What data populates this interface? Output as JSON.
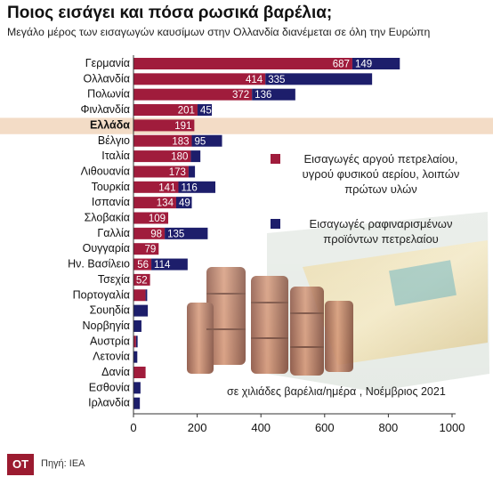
{
  "title": "Ποιος εισάγει και πόσα ρωσικά βαρέλια;",
  "subtitle": "Μεγάλο μέρος των εισαγωγών καυσίμων στην Ολλανδία διανέμεται σε όλη την Ευρώπη",
  "unit_note": "σε χιλιάδες βαρέλια/ημέρα , Νοέμβριος 2021",
  "footer": {
    "logo": "OT",
    "source": "Πηγή: IEA"
  },
  "colors": {
    "crude": "#a01c3c",
    "refined": "#1d1e6b",
    "highlight": "#f3dcc6"
  },
  "chart_data": {
    "type": "bar",
    "orientation": "horizontal",
    "stacked": true,
    "highlight_category": "Ελλάδα",
    "categories": [
      "Γερμανία",
      "Ολλανδία",
      "Πολωνία",
      "Φινλανδία",
      "Ελλάδα",
      "Βέλγιο",
      "Ιταλία",
      "Λιθουανία",
      "Τουρκία",
      "Ισπανία",
      "Σλοβακία",
      "Γαλλία",
      "Ουγγαρία",
      "Ην. Βασίλειο",
      "Τσεχία",
      "Πορτογαλία",
      "Σουηδία",
      "Νορβηγία",
      "Αυστρία",
      "Λετονία",
      "Δανία",
      "Εσθονία",
      "Ιρλανδία"
    ],
    "series": [
      {
        "name": "Εισαγωγές αργού πετρελαίου, υγρού φυσικού αερίου, λοιπών πρώτων υλών",
        "color": "#a01c3c",
        "values": [
          687,
          414,
          372,
          201,
          191,
          183,
          180,
          173,
          141,
          134,
          109,
          98,
          79,
          56,
          52,
          38,
          0,
          0,
          8,
          0,
          38,
          0,
          0
        ],
        "labels": [
          "687",
          "414",
          "372",
          "201",
          "191",
          "183",
          "180",
          "173",
          "141",
          "134",
          "109",
          "98",
          "79",
          "56",
          "52",
          "",
          "",
          "",
          "",
          "",
          "",
          "",
          ""
        ]
      },
      {
        "name": "Εισαγωγές ραφιναρισμένων προϊόντων πετρελαίου",
        "color": "#1d1e6b",
        "values": [
          149,
          335,
          136,
          45,
          0,
          95,
          30,
          20,
          116,
          49,
          0,
          135,
          0,
          114,
          0,
          5,
          45,
          25,
          5,
          12,
          0,
          22,
          20
        ],
        "labels": [
          "149",
          "335",
          "136",
          "45",
          "",
          "95",
          "",
          "",
          "116",
          "49",
          "",
          "135",
          "",
          "114",
          "",
          "",
          "",
          "",
          "",
          "",
          "",
          "",
          ""
        ]
      }
    ],
    "xlim": [
      0,
      1000
    ],
    "xticks": [
      0,
      200,
      400,
      600,
      800,
      1000
    ],
    "xtick_labels": [
      "0",
      "200",
      "400",
      "600",
      "800",
      "1000"
    ]
  }
}
